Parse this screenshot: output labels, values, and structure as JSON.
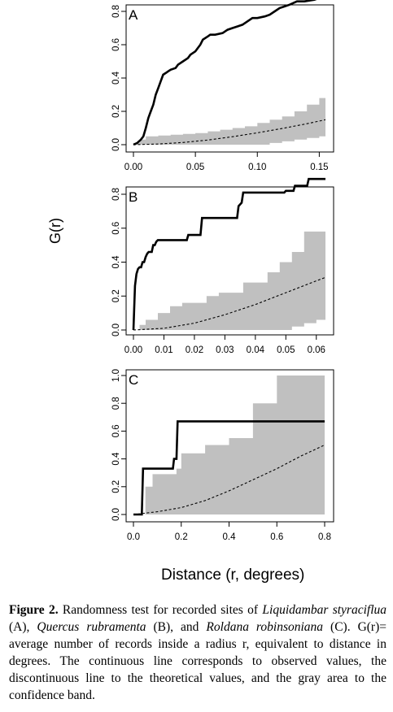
{
  "chart_data": [
    {
      "type": "line",
      "panel_label": "A",
      "xlim": [
        0,
        0.155
      ],
      "ylim": [
        0,
        0.88
      ],
      "xticks": [
        "0.00",
        "0.05",
        "0.10",
        "0.15"
      ],
      "xtick_values": [
        0,
        0.05,
        0.1,
        0.15
      ],
      "yticks": [
        "0.0",
        "0.2",
        "0.4",
        "0.6",
        "0.8"
      ],
      "ytick_values": [
        0,
        0.2,
        0.4,
        0.6,
        0.8
      ],
      "observed": {
        "x": [
          0,
          0.003,
          0.006,
          0.008,
          0.01,
          0.012,
          0.014,
          0.016,
          0.018,
          0.02,
          0.022,
          0.024,
          0.026,
          0.028,
          0.03,
          0.034,
          0.036,
          0.04,
          0.044,
          0.046,
          0.05,
          0.054,
          0.056,
          0.06,
          0.062,
          0.064,
          0.066,
          0.072,
          0.076,
          0.08,
          0.084,
          0.088,
          0.092,
          0.096,
          0.1,
          0.106,
          0.11,
          0.114,
          0.118,
          0.122,
          0.126,
          0.132,
          0.138,
          0.146,
          0.15,
          0.155
        ],
        "y": [
          0,
          0.01,
          0.03,
          0.05,
          0.1,
          0.16,
          0.2,
          0.24,
          0.3,
          0.34,
          0.38,
          0.42,
          0.43,
          0.44,
          0.45,
          0.46,
          0.48,
          0.5,
          0.52,
          0.54,
          0.56,
          0.6,
          0.63,
          0.65,
          0.66,
          0.66,
          0.66,
          0.67,
          0.69,
          0.7,
          0.71,
          0.72,
          0.74,
          0.76,
          0.76,
          0.77,
          0.78,
          0.8,
          0.82,
          0.83,
          0.84,
          0.86,
          0.86,
          0.87,
          0.88,
          0.88
        ]
      },
      "theoretical": {
        "x": [
          0,
          0.02,
          0.04,
          0.06,
          0.08,
          0.1,
          0.12,
          0.14,
          0.155
        ],
        "y": [
          0,
          0.004,
          0.013,
          0.028,
          0.048,
          0.071,
          0.097,
          0.126,
          0.15
        ]
      },
      "band": {
        "x": [
          0,
          0.005,
          0.01,
          0.02,
          0.03,
          0.04,
          0.05,
          0.06,
          0.07,
          0.08,
          0.09,
          0.1,
          0.11,
          0.12,
          0.13,
          0.14,
          0.15,
          0.155
        ],
        "upper": [
          0.01,
          0.03,
          0.05,
          0.055,
          0.06,
          0.065,
          0.07,
          0.08,
          0.09,
          0.1,
          0.11,
          0.13,
          0.15,
          0.17,
          0.2,
          0.24,
          0.28,
          0.3
        ],
        "lower": [
          0,
          0,
          0,
          0,
          0,
          0,
          0,
          0,
          0,
          0,
          0,
          0,
          0.01,
          0.02,
          0.03,
          0.04,
          0.05,
          0.06
        ]
      }
    },
    {
      "type": "line",
      "panel_label": "B",
      "xlim": [
        0,
        0.063
      ],
      "ylim": [
        0,
        0.89
      ],
      "xticks": [
        "0.00",
        "0.01",
        "0.02",
        "0.03",
        "0.04",
        "0.05",
        "0.06"
      ],
      "xtick_values": [
        0,
        0.01,
        0.02,
        0.03,
        0.04,
        0.05,
        0.06
      ],
      "yticks": [
        "0.0",
        "0.2",
        "0.4",
        "0.6",
        "0.8"
      ],
      "ytick_values": [
        0,
        0.2,
        0.4,
        0.6,
        0.8
      ],
      "observed": {
        "x": [
          0,
          0.0005,
          0.001,
          0.0015,
          0.002,
          0.0025,
          0.003,
          0.0035,
          0.004,
          0.0045,
          0.005,
          0.0055,
          0.006,
          0.0065,
          0.007,
          0.0075,
          0.008,
          0.0085,
          0.009,
          0.0095,
          0.0115,
          0.012,
          0.0175,
          0.018,
          0.02,
          0.0205,
          0.022,
          0.0225,
          0.0255,
          0.026,
          0.0315,
          0.032,
          0.034,
          0.0345,
          0.0355,
          0.036,
          0.0495,
          0.05,
          0.0525,
          0.053,
          0.057,
          0.0575,
          0.063
        ],
        "y": [
          0,
          0.26,
          0.33,
          0.36,
          0.37,
          0.37,
          0.4,
          0.4,
          0.43,
          0.45,
          0.46,
          0.46,
          0.46,
          0.5,
          0.5,
          0.52,
          0.53,
          0.53,
          0.53,
          0.53,
          0.53,
          0.53,
          0.53,
          0.56,
          0.56,
          0.56,
          0.56,
          0.66,
          0.66,
          0.66,
          0.66,
          0.66,
          0.66,
          0.73,
          0.75,
          0.81,
          0.81,
          0.82,
          0.82,
          0.85,
          0.85,
          0.89,
          0.89
        ]
      },
      "theoretical": {
        "x": [
          0,
          0.01,
          0.02,
          0.03,
          0.04,
          0.05,
          0.06,
          0.063
        ],
        "y": [
          0,
          0.01,
          0.04,
          0.09,
          0.15,
          0.22,
          0.29,
          0.31
        ]
      },
      "band": {
        "x": [
          0,
          0.002,
          0.004,
          0.008,
          0.012,
          0.016,
          0.02,
          0.024,
          0.028,
          0.032,
          0.036,
          0.04,
          0.044,
          0.048,
          0.052,
          0.056,
          0.06,
          0.063
        ],
        "upper": [
          0,
          0.03,
          0.06,
          0.1,
          0.14,
          0.16,
          0.16,
          0.2,
          0.22,
          0.22,
          0.28,
          0.28,
          0.34,
          0.4,
          0.46,
          0.58,
          0.58,
          0.58
        ],
        "lower": [
          0,
          0,
          0,
          0,
          0,
          0,
          0,
          0,
          0,
          0,
          0,
          0,
          0,
          0,
          0.02,
          0.04,
          0.06,
          0.06
        ]
      }
    },
    {
      "type": "line",
      "panel_label": "C",
      "xlim": [
        0,
        0.8
      ],
      "ylim": [
        0,
        1.0
      ],
      "xticks": [
        "0.0",
        "0.2",
        "0.4",
        "0.6",
        "0.8"
      ],
      "xtick_values": [
        0,
        0.2,
        0.4,
        0.6,
        0.8
      ],
      "yticks": [
        "0.0",
        "0.2",
        "0.4",
        "0.6",
        "0.8",
        "1.0"
      ],
      "ytick_values": [
        0,
        0.2,
        0.4,
        0.6,
        0.8,
        1.0
      ],
      "observed": {
        "x": [
          0,
          0.035,
          0.04,
          0.165,
          0.17,
          0.18,
          0.185,
          0.8
        ],
        "y": [
          0,
          0,
          0.33,
          0.33,
          0.4,
          0.4,
          0.67,
          0.67
        ]
      },
      "theoretical": {
        "x": [
          0,
          0.1,
          0.2,
          0.3,
          0.4,
          0.5,
          0.6,
          0.7,
          0.8
        ],
        "y": [
          0,
          0.02,
          0.05,
          0.1,
          0.17,
          0.25,
          0.33,
          0.42,
          0.5
        ]
      },
      "band": {
        "x": [
          0,
          0.04,
          0.05,
          0.07,
          0.08,
          0.12,
          0.14,
          0.18,
          0.2,
          0.3,
          0.35,
          0.4,
          0.45,
          0.5,
          0.55,
          0.6,
          0.65,
          0.7,
          0.75,
          0.8
        ],
        "upper": [
          0,
          0,
          0.2,
          0.2,
          0.29,
          0.29,
          0.29,
          0.33,
          0.44,
          0.5,
          0.5,
          0.55,
          0.55,
          0.8,
          0.8,
          1.0,
          1.0,
          1.0,
          1.0,
          1.0
        ],
        "lower": [
          0,
          0,
          0,
          0,
          0,
          0,
          0,
          0,
          0,
          0,
          0,
          0,
          0,
          0,
          0,
          0,
          0,
          0,
          0,
          0
        ]
      }
    }
  ],
  "axes": {
    "ylabel": "G(r)",
    "xlabel": "Distance (r, degrees)"
  },
  "caption": {
    "figure_label": "Figure 2.",
    "text_1": " Randomness test for recorded sites of ",
    "species_a": "Liquidambar styraciflua",
    "text_2": " (A), ",
    "species_b": "Quercus rubramenta",
    "text_3": " (B), and ",
    "species_c": "Roldana robinsoniana",
    "text_4": " (C). G(r)= average number of records inside a radius r, equivalent to distance in degrees. The continuous line corresponds to observed values, the discontinuous line to the theoretical values, and the gray area to the confidence band."
  },
  "colors": {
    "observed": "#000000",
    "theoretical": "#000000",
    "band": "#c0c0c0",
    "frame": "#000000"
  }
}
